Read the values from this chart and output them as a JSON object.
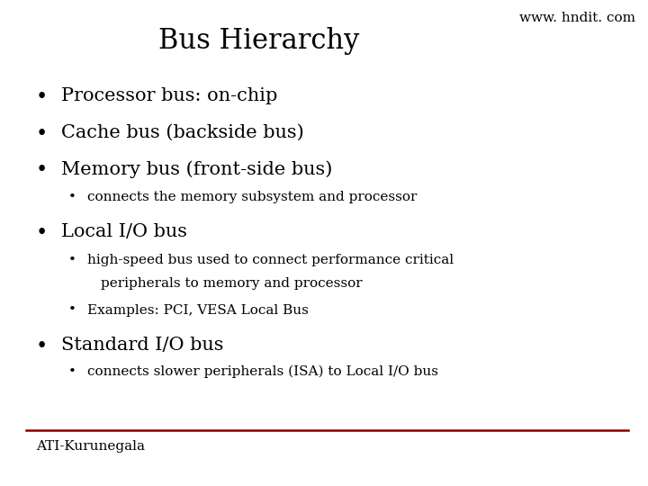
{
  "title": "Bus Hierarchy",
  "watermark": "www. hndit. com",
  "footer": "ATI-Kurunegala",
  "background_color": "#ffffff",
  "title_color": "#000000",
  "watermark_color": "#000000",
  "footer_color": "#000000",
  "line_color": "#8B0000",
  "title_fontsize": 22,
  "watermark_fontsize": 11,
  "footer_fontsize": 11,
  "bullet_large_fontsize": 15,
  "bullet_small_fontsize": 11,
  "content": [
    {
      "level": 1,
      "text": "Processor bus: on-chip"
    },
    {
      "level": 1,
      "text": "Cache bus (backside bus)"
    },
    {
      "level": 1,
      "text": "Memory bus (front-side bus)"
    },
    {
      "level": 2,
      "text": "  connects the memory subsystem and processor"
    },
    {
      "level": 1,
      "text": "Local I/O bus"
    },
    {
      "level": 2,
      "text": "  high-speed bus used to connect performance critical\n    peripherals to memory and processor"
    },
    {
      "level": 2,
      "text": "  Examples: PCI, VESA Local Bus"
    },
    {
      "level": 1,
      "text": "Standard I/O bus"
    },
    {
      "level": 2,
      "text": "  connects slower peripherals (ISA) to Local I/O bus"
    }
  ]
}
